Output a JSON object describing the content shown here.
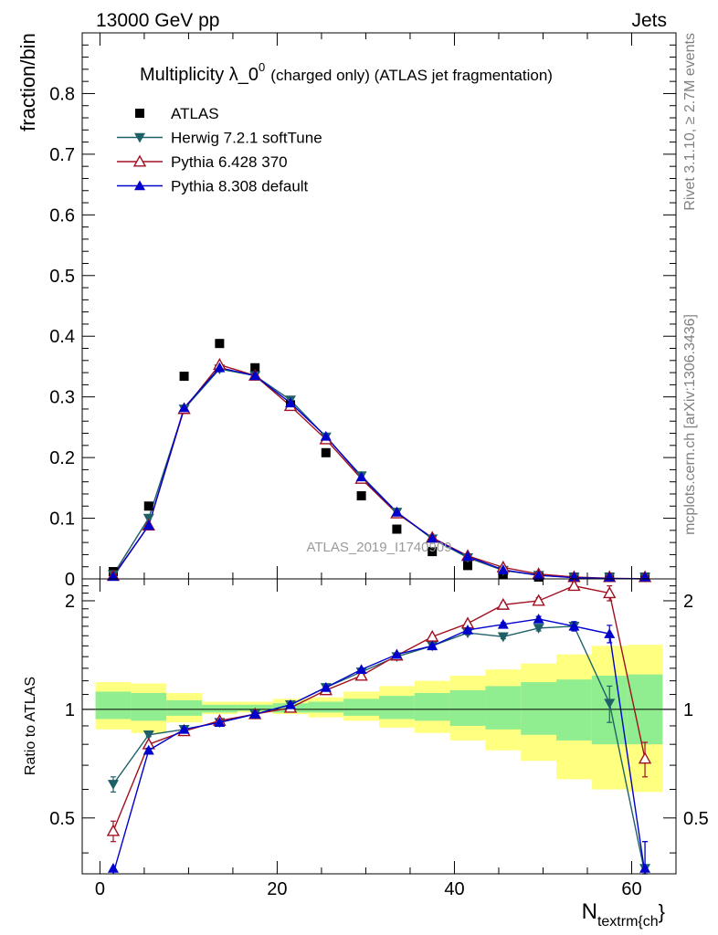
{
  "header": {
    "left": "13000 GeV pp",
    "right": "Jets"
  },
  "side_labels": {
    "rivet": "Rivet 3.1.10, ≥ 2.7M events",
    "mcplots": "mcplots.cern.ch [arXiv:1306.3436]"
  },
  "watermark": "ATLAS_2019_I1740909",
  "colors": {
    "data": "#000000",
    "herwig": "#1f6068",
    "pythia6": "#a01020",
    "pythia8": "#0000cc",
    "band_outer": "#ffff80",
    "band_inner": "#90ee90"
  },
  "chart_data": [
    {
      "type": "scatter",
      "title_main": "Multiplicity λ_0",
      "title_sup": "0",
      "title_rest": "(charged only) (ATLAS jet fragmentation)",
      "ylabel": "fraction/bin",
      "xlim": [
        -2,
        65
      ],
      "ylim": [
        0,
        0.9
      ],
      "yticks": [
        0,
        0.1,
        0.2,
        0.3,
        0.4,
        0.5,
        0.6,
        0.7,
        0.8
      ],
      "ytick_labels": [
        "0",
        "0.1",
        "0.2",
        "0.3",
        "0.4",
        "0.5",
        "0.6",
        "0.7",
        "0.8"
      ],
      "legend_position": "top-left",
      "x": [
        1.5,
        5.5,
        9.5,
        13.5,
        17.5,
        21.5,
        25.5,
        29.5,
        33.5,
        37.5,
        41.5,
        45.5,
        49.5,
        53.5,
        57.5,
        61.5
      ],
      "series": [
        {
          "name": "ATLAS",
          "key": "data",
          "marker": "square",
          "values": [
            0.012,
            0.12,
            0.334,
            0.388,
            0.348,
            0.287,
            0.208,
            0.137,
            0.082,
            0.045,
            0.022,
            0.008,
            0.003,
            0.001,
            0.0004,
            0.0001
          ]
        },
        {
          "name": "Herwig 7.2.1 softTune",
          "key": "herwig",
          "marker": "triangle-down",
          "values": [
            0.007,
            0.1,
            0.28,
            0.346,
            0.335,
            0.295,
            0.234,
            0.17,
            0.11,
            0.066,
            0.035,
            0.014,
            0.006,
            0.0025,
            0.0005,
            0.0001
          ]
        },
        {
          "name": "Pythia 6.428 370",
          "key": "pythia6",
          "marker": "triangle-up-open",
          "values": [
            0.005,
            0.088,
            0.28,
            0.353,
            0.335,
            0.285,
            0.23,
            0.165,
            0.108,
            0.068,
            0.038,
            0.019,
            0.008,
            0.003,
            0.001,
            0.0002
          ]
        },
        {
          "name": "Pythia 8.308 default",
          "key": "pythia8",
          "marker": "triangle-up",
          "values": [
            0.004,
            0.088,
            0.282,
            0.348,
            0.335,
            0.29,
            0.235,
            0.168,
            0.11,
            0.067,
            0.037,
            0.015,
            0.006,
            0.002,
            0.0007,
            0.0001
          ]
        }
      ]
    },
    {
      "type": "line",
      "ylabel": "Ratio to ATLAS",
      "xlabel_main": "N",
      "xlabel_sub": "textrm{ch",
      "xlabel_tail": "}",
      "xlim": [
        -2,
        65
      ],
      "ylim": [
        0.35,
        2.3
      ],
      "xticks": [
        0,
        20,
        40,
        60
      ],
      "xtick_labels": [
        "0",
        "20",
        "40",
        "60"
      ],
      "yticks": [
        0.5,
        1,
        2
      ],
      "ytick_labels": [
        "0.5",
        "1",
        "2"
      ],
      "x": [
        1.5,
        5.5,
        9.5,
        13.5,
        17.5,
        21.5,
        25.5,
        29.5,
        33.5,
        37.5,
        41.5,
        45.5,
        49.5,
        53.5,
        57.5,
        61.5
      ],
      "bin_edges": [
        -0.5,
        3.5,
        7.5,
        11.5,
        15.5,
        19.5,
        23.5,
        27.5,
        31.5,
        35.5,
        39.5,
        43.5,
        47.5,
        51.5,
        55.5,
        59.5,
        63.5
      ],
      "band_outer": [
        [
          0.88,
          1.19
        ],
        [
          0.86,
          1.18
        ],
        [
          0.92,
          1.11
        ],
        [
          0.97,
          1.05
        ],
        [
          0.98,
          1.05
        ],
        [
          0.97,
          1.07
        ],
        [
          0.95,
          1.08
        ],
        [
          0.93,
          1.12
        ],
        [
          0.89,
          1.16
        ],
        [
          0.86,
          1.2
        ],
        [
          0.82,
          1.24
        ],
        [
          0.77,
          1.29
        ],
        [
          0.72,
          1.34
        ],
        [
          0.64,
          1.42
        ],
        [
          0.6,
          1.5
        ],
        [
          0.59,
          1.51
        ]
      ],
      "band_inner": [
        [
          0.94,
          1.12
        ],
        [
          0.93,
          1.11
        ],
        [
          0.96,
          1.06
        ],
        [
          0.98,
          1.03
        ],
        [
          0.99,
          1.03
        ],
        [
          0.98,
          1.04
        ],
        [
          0.98,
          1.05
        ],
        [
          0.96,
          1.07
        ],
        [
          0.94,
          1.09
        ],
        [
          0.93,
          1.11
        ],
        [
          0.9,
          1.13
        ],
        [
          0.88,
          1.16
        ],
        [
          0.85,
          1.19
        ],
        [
          0.82,
          1.21
        ],
        [
          0.8,
          1.24
        ],
        [
          0.8,
          1.25
        ]
      ],
      "series": [
        {
          "name": "Herwig 7.2.1 softTune",
          "key": "herwig",
          "marker": "triangle-down",
          "values": [
            0.62,
            0.85,
            0.88,
            0.92,
            0.97,
            1.03,
            1.15,
            1.27,
            1.4,
            1.5,
            1.63,
            1.59,
            1.68,
            1.7,
            1.04,
            0.33
          ],
          "errors": [
            0.03,
            0.01,
            0.01,
            0.01,
            0.01,
            0.01,
            0.01,
            0.01,
            0.01,
            0.01,
            0.02,
            0.02,
            0.03,
            0.05,
            0.12,
            0.1
          ]
        },
        {
          "name": "Pythia 6.428 370",
          "key": "pythia6",
          "marker": "triangle-up-open",
          "values": [
            0.46,
            0.8,
            0.87,
            0.93,
            0.97,
            1.01,
            1.13,
            1.24,
            1.41,
            1.59,
            1.73,
            1.95,
            2.0,
            2.2,
            2.1,
            0.73
          ],
          "errors": [
            0.03,
            0.01,
            0.01,
            0.01,
            0.01,
            0.01,
            0.01,
            0.01,
            0.01,
            0.01,
            0.02,
            0.03,
            0.04,
            0.06,
            0.1,
            0.08
          ]
        },
        {
          "name": "Pythia 8.308 default",
          "key": "pythia8",
          "marker": "triangle-up",
          "values": [
            0.3,
            0.77,
            0.88,
            0.92,
            0.97,
            1.03,
            1.15,
            1.29,
            1.42,
            1.5,
            1.66,
            1.72,
            1.78,
            1.7,
            1.62,
            0.33
          ],
          "errors": [
            0.02,
            0.01,
            0.01,
            0.01,
            0.01,
            0.01,
            0.01,
            0.01,
            0.01,
            0.01,
            0.02,
            0.02,
            0.03,
            0.05,
            0.09,
            0.1
          ]
        }
      ]
    }
  ]
}
